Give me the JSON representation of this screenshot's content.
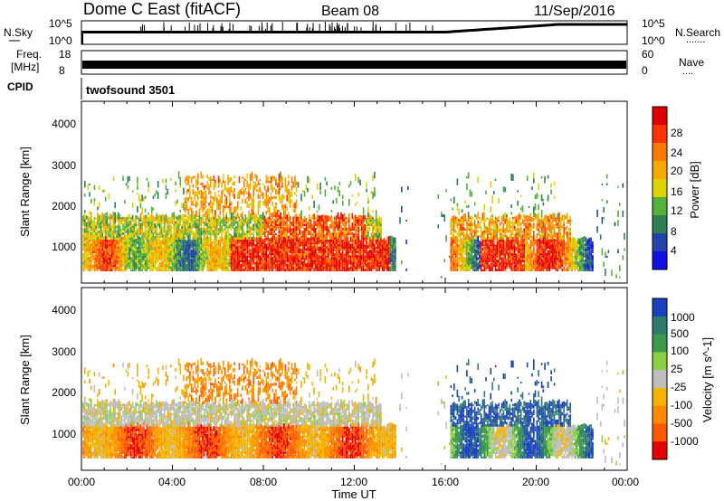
{
  "header": {
    "title": "Dome C East (fitACF)",
    "beam": "Beam 08",
    "date": "11/Sep/2016"
  },
  "status_panels": {
    "nsky_label": "N.Sky",
    "nsearch_label": "N.Search",
    "nsearch_dots": ".......",
    "noise_ticks_left": [
      "10^5",
      "10^0"
    ],
    "noise_ticks_right": [
      "10^5",
      "10^0"
    ],
    "freq_label_1": "Freq.",
    "freq_label_2": "[MHz]",
    "freq_ticks": [
      "18",
      "8"
    ],
    "nave_label": "Nave",
    "nave_dots": "....",
    "nave_ticks": [
      "60",
      "0"
    ],
    "cpid_label": "CPID",
    "cpid_value": "twofsound 3501"
  },
  "chart_data": [
    {
      "type": "heatmap",
      "name": "power",
      "ylabel": "Slant Range [km]",
      "y_ticks": [
        "4000",
        "3000",
        "2000",
        "1000"
      ],
      "x_ticks": [
        "00:00",
        "04:00",
        "08:00",
        "12:00",
        "16:00",
        "20:00",
        "00:00"
      ],
      "xlim_hours": [
        0,
        24
      ],
      "ylim_km": [
        180,
        4600
      ],
      "colorbar_label": "Power [dB]",
      "colorbar_ticks": [
        "28",
        "24",
        "20",
        "16",
        "12",
        "8",
        "4"
      ],
      "colorbar_colors": [
        "#e10000",
        "#ff3300",
        "#ff7a00",
        "#f6a800",
        "#dcd200",
        "#55b13a",
        "#2f7f55",
        "#2244aa",
        "#1010e0"
      ]
    },
    {
      "type": "heatmap",
      "name": "velocity",
      "ylabel": "Slant Range [km]",
      "y_ticks": [
        "4000",
        "3000",
        "2000",
        "1000"
      ],
      "x_ticks": [
        "00:00",
        "04:00",
        "08:00",
        "12:00",
        "16:00",
        "20:00",
        "00:00"
      ],
      "xlabel": "Time UT",
      "xlim_hours": [
        0,
        24
      ],
      "ylim_km": [
        180,
        4600
      ],
      "colorbar_label": "Velocity [m s^-1]",
      "colorbar_ticks": [
        "1000",
        "500",
        "100",
        "25",
        "-25",
        "-100",
        "-500",
        "-1000"
      ],
      "colorbar_colors": [
        "#1a3fbf",
        "#2e7a6e",
        "#3c9a4a",
        "#8ad042",
        "#bdbdbd",
        "#f2b400",
        "#ff8a00",
        "#ff5a00",
        "#e30000"
      ]
    }
  ]
}
